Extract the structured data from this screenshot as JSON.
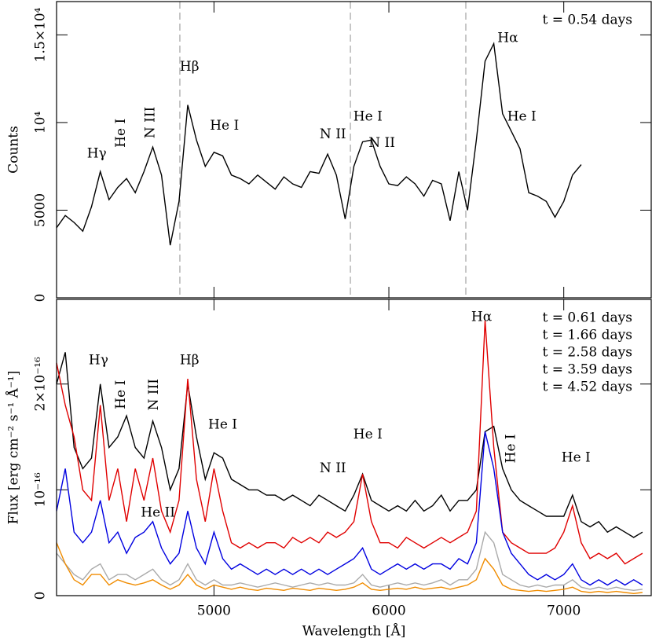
{
  "chart_data": [
    {
      "type": "line",
      "ylabel": "Counts",
      "xlim": [
        4100,
        7500
      ],
      "ylim": [
        0,
        16900
      ],
      "yticks": [
        0,
        5000,
        {
          "value": 10000,
          "label": "10⁴"
        },
        {
          "value": 15000,
          "label": "1.5×10⁴"
        }
      ],
      "vlines": [
        4805,
        5780,
        6440
      ],
      "vline_color": "#aaaaaa",
      "x": [
        4100,
        4150,
        4200,
        4250,
        4300,
        4350,
        4400,
        4450,
        4500,
        4550,
        4600,
        4650,
        4700,
        4750,
        4800,
        4850,
        4900,
        4950,
        5000,
        5050,
        5100,
        5150,
        5200,
        5250,
        5300,
        5350,
        5400,
        5450,
        5500,
        5550,
        5600,
        5650,
        5700,
        5750,
        5800,
        5850,
        5900,
        5950,
        6000,
        6050,
        6100,
        6150,
        6200,
        6250,
        6300,
        6350,
        6400,
        6450,
        6500,
        6550,
        6600,
        6650,
        6700,
        6750,
        6800,
        6850,
        6900,
        6950,
        7000,
        7050,
        7100,
        7150,
        7200,
        7250,
        7300,
        7350,
        7400,
        7450
      ],
      "series": [
        {
          "name": "t = 0.54 days",
          "color": "#000000",
          "values": [
            4000,
            4700,
            4300,
            3800,
            5200,
            7200,
            5600,
            6300,
            6800,
            6000,
            7200,
            8600,
            7000,
            3000,
            5500,
            11000,
            9000,
            7500,
            8300,
            8100,
            7000,
            6800,
            6500,
            7000,
            6600,
            6200,
            6900,
            6500,
            6300,
            7200,
            7100,
            8200,
            7000,
            4500,
            7500,
            8900,
            9000,
            7500,
            6500,
            6400,
            6900,
            6500,
            5800,
            6700,
            6500,
            4400,
            7200,
            5000,
            9000,
            13500,
            14500,
            10500,
            9500,
            8500,
            6000,
            5800,
            5500,
            4600,
            5500,
            7000,
            7600,
            null,
            null,
            null,
            null,
            null,
            null,
            null
          ]
        }
      ],
      "annotations": [
        {
          "text": "Hγ",
          "x": 4330,
          "y": 8200
        },
        {
          "text": "He I",
          "x": 4470,
          "y": 9400,
          "rotate": true
        },
        {
          "text": "N III",
          "x": 4640,
          "y": 10000,
          "rotate": true
        },
        {
          "text": "Hβ",
          "x": 4860,
          "y": 13150
        },
        {
          "text": "He I",
          "x": 5060,
          "y": 9800
        },
        {
          "text": "N II",
          "x": 5680,
          "y": 9300
        },
        {
          "text": "He I",
          "x": 5880,
          "y": 10300
        },
        {
          "text": "N II",
          "x": 5960,
          "y": 8800
        },
        {
          "text": "Hα",
          "x": 6680,
          "y": 14800
        },
        {
          "text": "He I",
          "x": 6760,
          "y": 10300
        }
      ]
    },
    {
      "type": "line",
      "xlabel": "Wavelength [Å]",
      "ylabel": "Flux [erg cm⁻² s⁻¹ Å⁻¹]",
      "xlim": [
        4100,
        7500
      ],
      "ylim": [
        0,
        2.8e-16
      ],
      "xticks": [
        5000,
        6000,
        7000
      ],
      "yticks": [
        0,
        {
          "value": 1e-16,
          "label": "10⁻¹⁶"
        },
        {
          "value": 2e-16,
          "label": "2×10⁻¹⁶"
        }
      ],
      "x": [
        4100,
        4150,
        4200,
        4250,
        4300,
        4350,
        4400,
        4450,
        4500,
        4550,
        4600,
        4650,
        4700,
        4750,
        4800,
        4850,
        4900,
        4950,
        5000,
        5050,
        5100,
        5150,
        5200,
        5250,
        5300,
        5350,
        5400,
        5450,
        5500,
        5550,
        5600,
        5650,
        5700,
        5750,
        5800,
        5850,
        5900,
        5950,
        6000,
        6050,
        6100,
        6150,
        6200,
        6250,
        6300,
        6350,
        6400,
        6450,
        6500,
        6550,
        6600,
        6650,
        6700,
        6750,
        6800,
        6850,
        6900,
        6950,
        7000,
        7050,
        7100,
        7150,
        7200,
        7250,
        7300,
        7350,
        7400,
        7450
      ],
      "series": [
        {
          "name": "t = 0.61 days",
          "color": "#000000",
          "values": [
            2e-16,
            2.3e-16,
            1.4e-16,
            1.2e-16,
            1.3e-16,
            2e-16,
            1.4e-16,
            1.5e-16,
            1.7e-16,
            1.4e-16,
            1.3e-16,
            1.65e-16,
            1.4e-16,
            1e-16,
            1.2e-16,
            2e-16,
            1.5e-16,
            1.1e-16,
            1.35e-16,
            1.3e-16,
            1.1e-16,
            1.05e-16,
            1e-16,
            1e-16,
            9.5e-17,
            9.5e-17,
            9e-17,
            9.5e-17,
            9e-17,
            8.5e-17,
            9.5e-17,
            9e-17,
            8.5e-17,
            8e-17,
            9.5e-17,
            1.15e-16,
            9e-17,
            8.5e-17,
            8e-17,
            8.5e-17,
            8e-17,
            9e-17,
            8e-17,
            8.5e-17,
            9.5e-17,
            8e-17,
            9e-17,
            9e-17,
            1e-16,
            1.55e-16,
            1.6e-16,
            1.2e-16,
            1e-16,
            9e-17,
            8.5e-17,
            8e-17,
            7.5e-17,
            7.5e-17,
            7.5e-17,
            9.5e-17,
            7e-17,
            6.5e-17,
            7e-17,
            6e-17,
            6.5e-17,
            6e-17,
            5.5e-17,
            6e-17
          ]
        },
        {
          "name": "t = 1.66 days",
          "color": "#e00000",
          "values": [
            2.2e-16,
            1.8e-16,
            1.5e-16,
            1e-16,
            9e-17,
            1.8e-16,
            9e-17,
            1.2e-16,
            7e-17,
            1.2e-16,
            9e-17,
            1.3e-16,
            8e-17,
            6e-17,
            9e-17,
            2.05e-16,
            1.1e-16,
            7e-17,
            1.2e-16,
            8e-17,
            5e-17,
            4.5e-17,
            5e-17,
            4.5e-17,
            5e-17,
            5e-17,
            4.5e-17,
            5.5e-17,
            5e-17,
            5.5e-17,
            5e-17,
            6e-17,
            5.5e-17,
            6e-17,
            7e-17,
            1.15e-16,
            7e-17,
            5e-17,
            5e-17,
            4.5e-17,
            5.5e-17,
            5e-17,
            4.5e-17,
            5e-17,
            5.5e-17,
            5e-17,
            5.5e-17,
            6e-17,
            8e-17,
            2.6e-16,
            1.4e-16,
            6e-17,
            5e-17,
            4.5e-17,
            4e-17,
            4e-17,
            4e-17,
            4.5e-17,
            6e-17,
            8.5e-17,
            5e-17,
            3.5e-17,
            4e-17,
            3.5e-17,
            4e-17,
            3e-17,
            3.5e-17,
            4e-17
          ]
        },
        {
          "name": "t = 2.58 days",
          "color": "#0000e0",
          "values": [
            8e-17,
            1.2e-16,
            6e-17,
            5e-17,
            6e-17,
            9e-17,
            5e-17,
            6e-17,
            4e-17,
            5.5e-17,
            6e-17,
            7e-17,
            4.5e-17,
            3e-17,
            4e-17,
            8e-17,
            4.5e-17,
            3e-17,
            6e-17,
            3.5e-17,
            2.5e-17,
            3e-17,
            2.5e-17,
            2e-17,
            2.5e-17,
            2e-17,
            2.5e-17,
            2e-17,
            2.5e-17,
            2e-17,
            2.5e-17,
            2e-17,
            2.5e-17,
            3e-17,
            3.5e-17,
            4.5e-17,
            2.5e-17,
            2e-17,
            2.5e-17,
            3e-17,
            2.5e-17,
            3e-17,
            2.5e-17,
            3e-17,
            3e-17,
            2.5e-17,
            3.5e-17,
            3e-17,
            5e-17,
            1.55e-16,
            1.2e-16,
            6e-17,
            4e-17,
            3e-17,
            2e-17,
            1.5e-17,
            2e-17,
            1.5e-17,
            2e-17,
            3e-17,
            1.5e-17,
            1e-17,
            1.5e-17,
            1e-17,
            1.5e-17,
            1e-17,
            1.5e-17,
            1e-17
          ]
        },
        {
          "name": "t = 3.59 days",
          "color": "#aaaaaa",
          "values": [
            4e-17,
            3e-17,
            2e-17,
            1.5e-17,
            2.5e-17,
            3e-17,
            1.5e-17,
            2e-17,
            2e-17,
            1.5e-17,
            2e-17,
            2.5e-17,
            1.5e-17,
            1e-17,
            1.5e-17,
            3e-17,
            1.5e-17,
            1e-17,
            1.5e-17,
            1e-17,
            1e-17,
            1.2e-17,
            1e-17,
            8e-18,
            1e-17,
            1.2e-17,
            1e-17,
            8e-18,
            1e-17,
            1.2e-17,
            1e-17,
            1.2e-17,
            1e-17,
            1e-17,
            1.2e-17,
            2e-17,
            1e-17,
            8e-18,
            1e-17,
            1.2e-17,
            1e-17,
            1.2e-17,
            1e-17,
            1.2e-17,
            1.5e-17,
            1e-17,
            1.5e-17,
            1.5e-17,
            2.5e-17,
            6e-17,
            5e-17,
            2e-17,
            1.5e-17,
            1e-17,
            8e-18,
            1e-17,
            8e-18,
            1e-17,
            1e-17,
            1.5e-17,
            8e-18,
            6e-18,
            8e-18,
            6e-18,
            8e-18,
            6e-18,
            5e-18,
            6e-18
          ]
        },
        {
          "name": "t = 4.52 days",
          "color": "#f08c00",
          "values": [
            5e-17,
            3e-17,
            1.5e-17,
            1e-17,
            2e-17,
            2e-17,
            1e-17,
            1.5e-17,
            1.2e-17,
            1e-17,
            1.2e-17,
            1.5e-17,
            1e-17,
            6e-18,
            1e-17,
            2e-17,
            1e-17,
            6e-18,
            1e-17,
            8e-18,
            6e-18,
            8e-18,
            6e-18,
            5e-18,
            7e-18,
            6e-18,
            5e-18,
            7e-18,
            6e-18,
            5e-18,
            7e-18,
            6e-18,
            5e-18,
            6e-18,
            8e-18,
            1.2e-17,
            6e-18,
            5e-18,
            6e-18,
            7e-18,
            6e-18,
            8e-18,
            6e-18,
            7e-18,
            8e-18,
            6e-18,
            8e-18,
            1e-17,
            1.5e-17,
            3.5e-17,
            2.5e-17,
            1e-17,
            6e-18,
            5e-18,
            4e-18,
            5e-18,
            4e-18,
            5e-18,
            6e-18,
            8e-18,
            4e-18,
            3e-18,
            4e-18,
            3e-18,
            4e-18,
            3e-18,
            2e-18,
            3e-18
          ]
        }
      ],
      "annotations": [
        {
          "text": "Hγ",
          "x": 4340,
          "y": 2.22e-16
        },
        {
          "text": "He I",
          "x": 4470,
          "y": 1.9e-16,
          "rotate": true
        },
        {
          "text": "N III",
          "x": 4660,
          "y": 1.9e-16,
          "rotate": true
        },
        {
          "text": "He II",
          "x": 4680,
          "y": 7.8e-17
        },
        {
          "text": "Hβ",
          "x": 4860,
          "y": 2.22e-16
        },
        {
          "text": "He I",
          "x": 5050,
          "y": 1.61e-16
        },
        {
          "text": "N II",
          "x": 5680,
          "y": 1.2e-16
        },
        {
          "text": "He I",
          "x": 5880,
          "y": 1.52e-16
        },
        {
          "text": "Hα",
          "x": 6530,
          "y": 2.63e-16
        },
        {
          "text": "He I",
          "x": 6700,
          "y": 1.39e-16,
          "rotate": true
        },
        {
          "text": "He I",
          "x": 7070,
          "y": 1.3e-16
        }
      ]
    }
  ]
}
